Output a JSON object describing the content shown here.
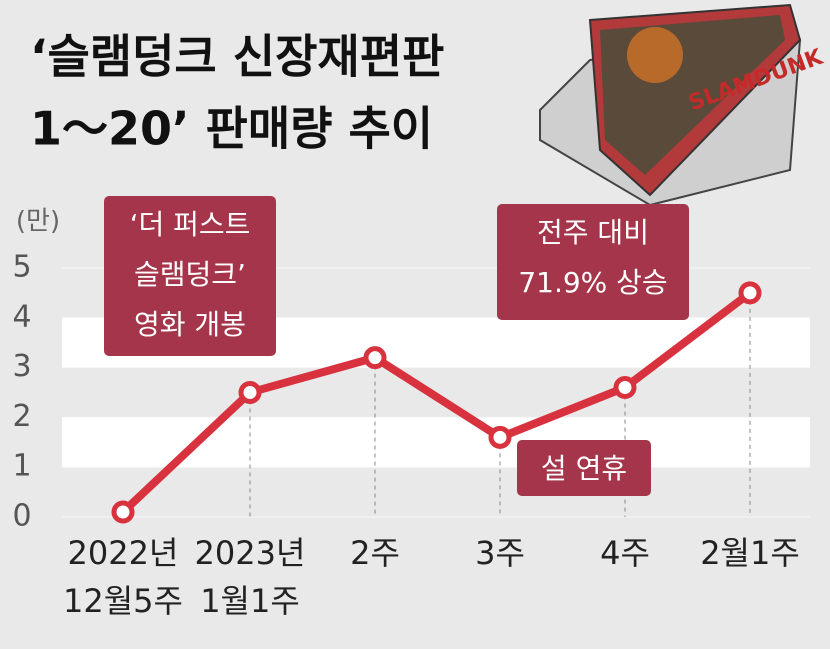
{
  "chart_data": {
    "type": "line",
    "title": [
      "‘슬램덩크 신장재편판",
      "1～20’ 판매량 추이"
    ],
    "y_unit": "(만)",
    "categories": [
      [
        "2022년",
        "12월5주"
      ],
      [
        "2023년",
        "1월1주"
      ],
      [
        "2주"
      ],
      [
        "3주"
      ],
      [
        "4주"
      ],
      [
        "2월1주"
      ]
    ],
    "values": [
      0.1,
      2.5,
      3.2,
      1.6,
      2.6,
      4.5
    ],
    "color": "#d8323f",
    "ylim": [
      0,
      5
    ],
    "yticks": [
      0,
      1,
      2,
      3,
      4,
      5
    ],
    "annotations": [
      [
        "‘더 퍼스트",
        "슬램덩크’",
        "영화 개봉"
      ],
      [
        "전주 대비",
        "71.9% 상승"
      ],
      [
        "설 연휴"
      ]
    ]
  }
}
